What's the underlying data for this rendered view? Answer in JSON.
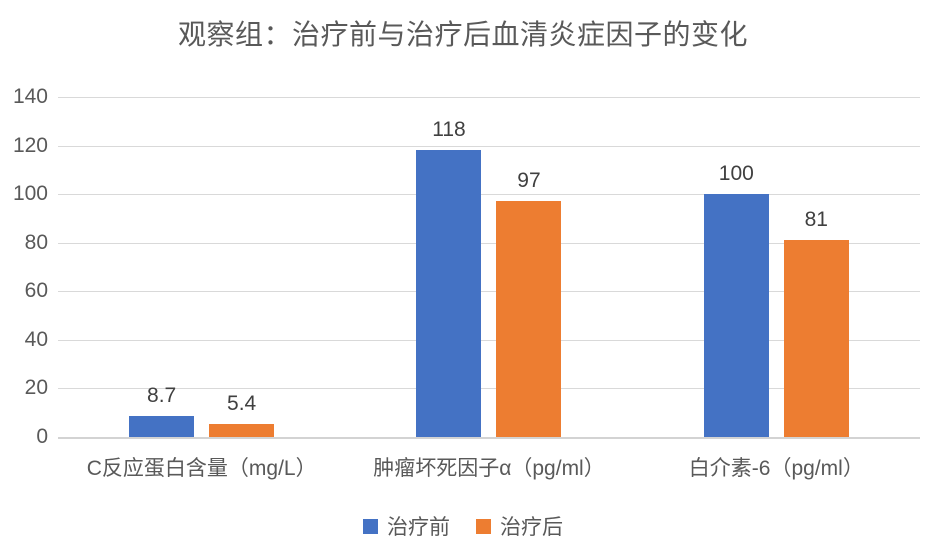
{
  "chart_data": {
    "type": "bar",
    "title": "观察组：治疗前与治疗后血清炎症因子的变化",
    "categories": [
      "C反应蛋白含量（mg/L）",
      "肿瘤坏死因子α（pg/ml）",
      "白介素-6（pg/ml）"
    ],
    "series": [
      {
        "name": "治疗前",
        "color": "#4472C4",
        "values": [
          8.7,
          118,
          100
        ]
      },
      {
        "name": "治疗后",
        "color": "#ED7D31",
        "values": [
          5.4,
          97,
          81
        ]
      }
    ],
    "xlabel": "",
    "ylabel": "",
    "ylim": [
      0,
      140
    ],
    "yticks": [
      0,
      20,
      40,
      60,
      80,
      100,
      120,
      140
    ],
    "grid": true,
    "legend_position": "bottom"
  },
  "colors": {
    "series_before": "#4472C4",
    "series_after": "#ED7D31",
    "title_text": "#595959",
    "axis_text": "#595959",
    "data_label_text": "#404040",
    "gridline": "#D9D9D9"
  }
}
